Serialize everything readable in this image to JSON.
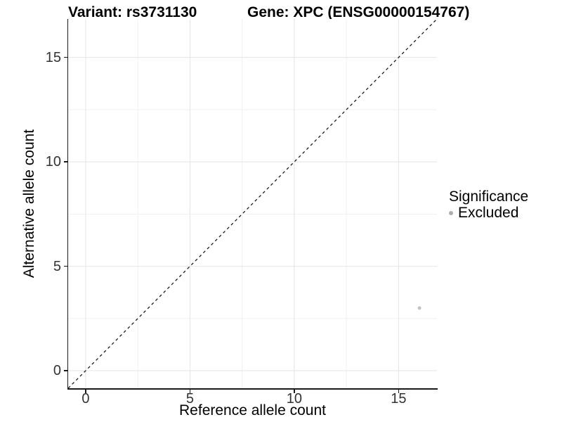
{
  "header": {
    "title_left": "Variant: rs3731130",
    "title_right": "Gene: XPC (ENSG00000154767)"
  },
  "chart_data": {
    "type": "scatter",
    "title": "Variant: rs3731130   Gene: XPC (ENSG00000154767)",
    "xlabel": "Reference allele count",
    "ylabel": "Alternative allele count",
    "xlim": [
      -0.84,
      16.84
    ],
    "ylim": [
      -0.84,
      16.84
    ],
    "x_ticks": [
      0,
      5,
      10,
      15
    ],
    "y_ticks": [
      0,
      5,
      10,
      15
    ],
    "minor_ticks": [
      2.5,
      7.5,
      12.5
    ],
    "grid": true,
    "grid_major_color": "#e4e4e4",
    "grid_minor_color": "#f0f0f0",
    "axis_color": "#1a1a1a",
    "reference_line": {
      "type": "identity",
      "from": -0.84,
      "to": 16.84,
      "style": "dashed",
      "color": "#1a1a1a"
    },
    "series": [
      {
        "name": "Excluded",
        "color": "#c2c2c2",
        "points": [
          {
            "x": 16,
            "y": 3
          }
        ]
      }
    ],
    "legend": {
      "title": "Significance",
      "position": "right",
      "entries": [
        {
          "label": "Excluded",
          "color": "#adadad"
        }
      ]
    }
  }
}
